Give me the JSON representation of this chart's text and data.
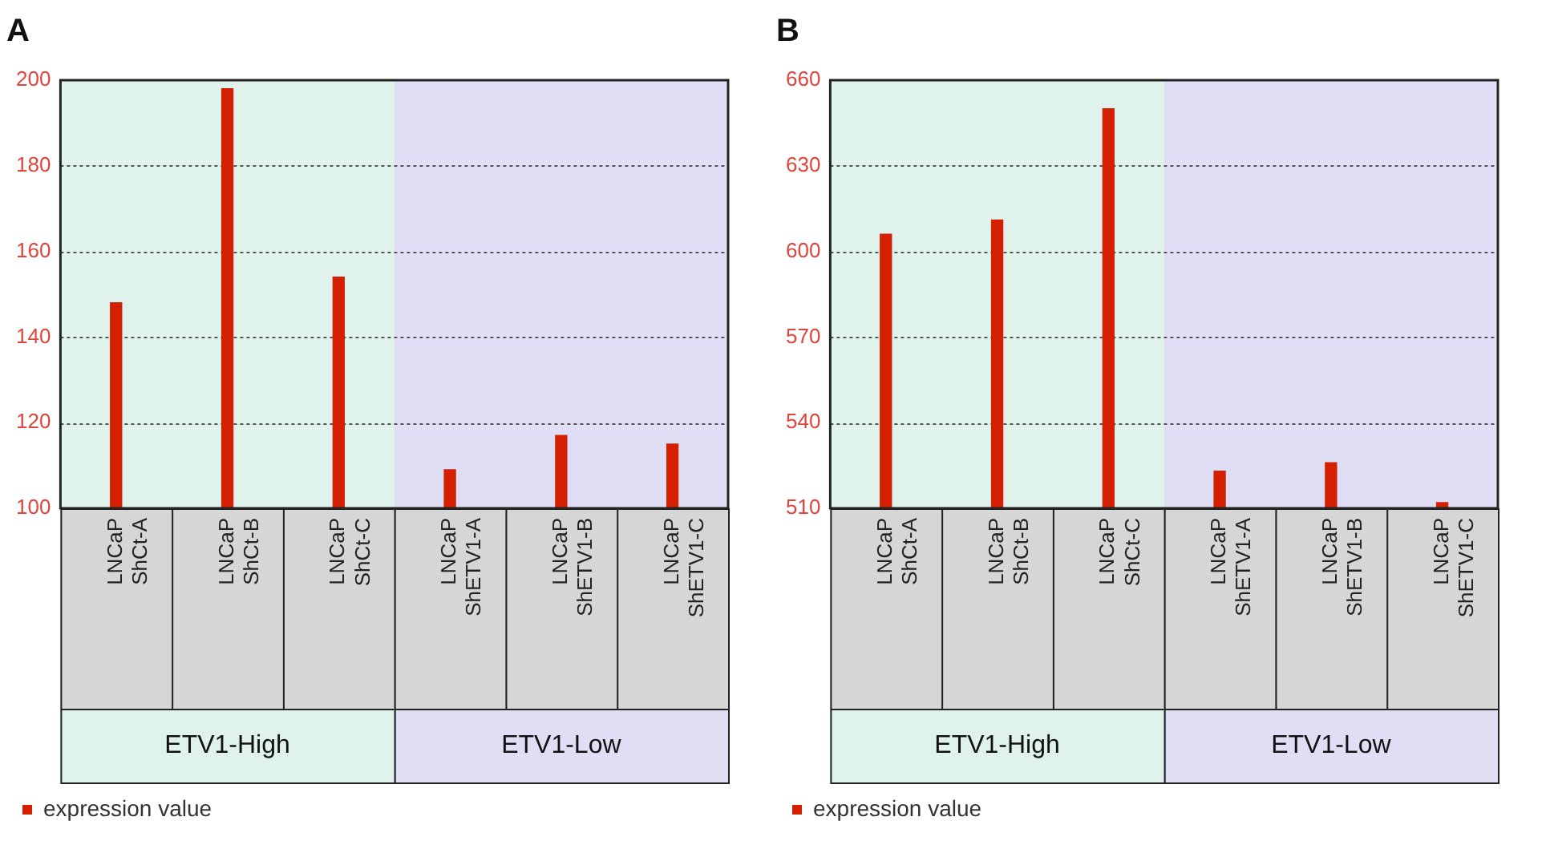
{
  "chart_data": [
    {
      "type": "bar",
      "title": "A",
      "categories": [
        "LNCaP ShCt-A",
        "LNCaP ShCt-B",
        "LNCaP ShCt-C",
        "LNCaP ShETV1-A",
        "LNCaP ShETV1-B",
        "LNCaP ShETV1-C"
      ],
      "series": [
        {
          "name": "expression value",
          "color": "#d42000",
          "values": [
            148,
            198,
            154,
            109,
            117,
            115
          ]
        }
      ],
      "ylim": [
        100,
        200
      ],
      "yticks": [
        100,
        120,
        140,
        160,
        180,
        200
      ],
      "grid": "y",
      "legend": "bottom left",
      "annotations": [
        "ETV1-High",
        "ETV1-Low"
      ],
      "bands": [
        {
          "axis": "x",
          "from": "LNCaP ShCt-A",
          "to": "LNCaP ShCt-C",
          "color": "#dff3ec"
        },
        {
          "axis": "x",
          "from": "LNCaP ShETV1-A",
          "to": "LNCaP ShETV1-C",
          "color": "#e0def4"
        }
      ]
    },
    {
      "type": "bar",
      "title": "B",
      "categories": [
        "LNCaP ShCt-A",
        "LNCaP ShCt-B",
        "LNCaP ShCt-C",
        "LNCaP ShETV1-A",
        "LNCaP ShETV1-B",
        "LNCaP ShETV1-C"
      ],
      "series": [
        {
          "name": "expression value",
          "color": "#d42000",
          "values": [
            606,
            611,
            650,
            523,
            526,
            512
          ]
        }
      ],
      "ylim": [
        510,
        660
      ],
      "yticks": [
        510,
        540,
        570,
        600,
        630,
        660
      ],
      "grid": "y",
      "legend": "bottom left",
      "annotations": [
        "ETV1-High",
        "ETV1-Low"
      ],
      "bands": [
        {
          "axis": "x",
          "from": "LNCaP ShCt-A",
          "to": "LNCaP ShCt-C",
          "color": "#dff3ec"
        },
        {
          "axis": "x",
          "from": "LNCaP ShETV1-A",
          "to": "LNCaP ShETV1-C",
          "color": "#e0def4"
        }
      ]
    }
  ]
}
